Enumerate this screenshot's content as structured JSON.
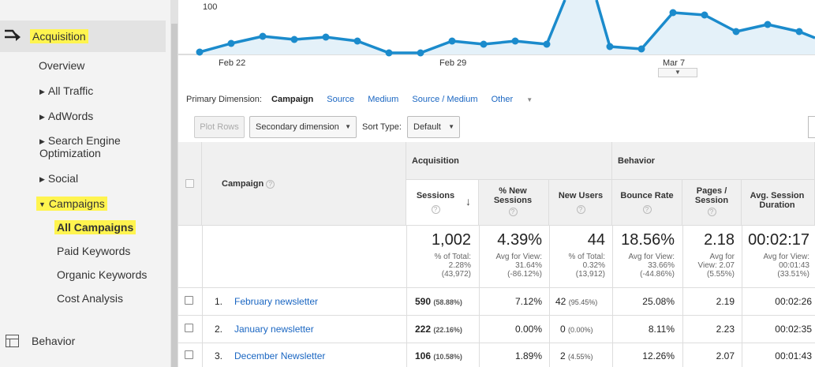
{
  "sidebar": {
    "acquisition": "Acquisition",
    "overview": "Overview",
    "all_traffic": "All Traffic",
    "adwords": "AdWords",
    "seo": "Search Engine Optimization",
    "social": "Social",
    "campaigns": "Campaigns",
    "all_campaigns": "All Campaigns",
    "paid_keywords": "Paid Keywords",
    "organic_keywords": "Organic Keywords",
    "cost_analysis": "Cost Analysis",
    "behavior": "Behavior",
    "highlight_color": "#fff44f"
  },
  "chart": {
    "y_tick": "100",
    "x_labels": [
      "Feb 22",
      "Feb 29",
      "Mar 7"
    ],
    "line_color": "#1b8bcc",
    "fill_color": "#e4f1f9"
  },
  "dimension_bar": {
    "label": "Primary Dimension:",
    "active": "Campaign",
    "links": [
      "Source",
      "Medium",
      "Source / Medium"
    ],
    "other": "Other"
  },
  "controls": {
    "plot_rows": "Plot Rows",
    "secondary_dimension": "Secondary dimension",
    "sort_type_label": "Sort Type:",
    "sort_type_value": "Default"
  },
  "table": {
    "campaign_header": "Campaign",
    "group_acquisition": "Acquisition",
    "group_behavior": "Behavior",
    "columns": {
      "sessions": "Sessions",
      "pct_new_sessions": "% New Sessions",
      "new_users": "New Users",
      "bounce_rate": "Bounce Rate",
      "pages_session": "Pages / Session",
      "avg_session": "Avg. Session Duration"
    },
    "totals": {
      "sessions": {
        "value": "1,002",
        "l1": "% of Total:",
        "l2": "2.28%",
        "l3": "(43,972)"
      },
      "pct_new_sessions": {
        "value": "4.39%",
        "l1": "Avg for View:",
        "l2": "31.64%",
        "l3": "(-86.12%)"
      },
      "new_users": {
        "value": "44",
        "l1": "% of Total:",
        "l2": "0.32%",
        "l3": "(13,912)"
      },
      "bounce_rate": {
        "value": "18.56%",
        "l1": "Avg for View:",
        "l2": "33.66%",
        "l3": "(-44.86%)"
      },
      "pages_session": {
        "value": "2.18",
        "l1": "Avg for",
        "l2": "View: 2.07",
        "l3": "(5.55%)"
      },
      "avg_session": {
        "value": "00:02:17",
        "l1": "Avg for View:",
        "l2": "00:01:43",
        "l3": "(33.51%)"
      }
    },
    "rows": [
      {
        "num": "1.",
        "campaign": "February newsletter",
        "sessions": "590",
        "sessions_pct": "(58.88%)",
        "pct_new": "7.12%",
        "new_users": "42",
        "new_users_pct": "(95.45%)",
        "bounce": "25.08%",
        "pages": "2.19",
        "duration": "00:02:26"
      },
      {
        "num": "2.",
        "campaign": "January newsletter",
        "sessions": "222",
        "sessions_pct": "(22.16%)",
        "pct_new": "0.00%",
        "new_users": "0",
        "new_users_pct": "(0.00%)",
        "bounce": "8.11%",
        "pages": "2.23",
        "duration": "00:02:35"
      },
      {
        "num": "3.",
        "campaign": "December Newsletter",
        "sessions": "106",
        "sessions_pct": "(10.58%)",
        "pct_new": "1.89%",
        "new_users": "2",
        "new_users_pct": "(4.55%)",
        "bounce": "12.26%",
        "pages": "2.07",
        "duration": "00:01:43"
      }
    ]
  }
}
